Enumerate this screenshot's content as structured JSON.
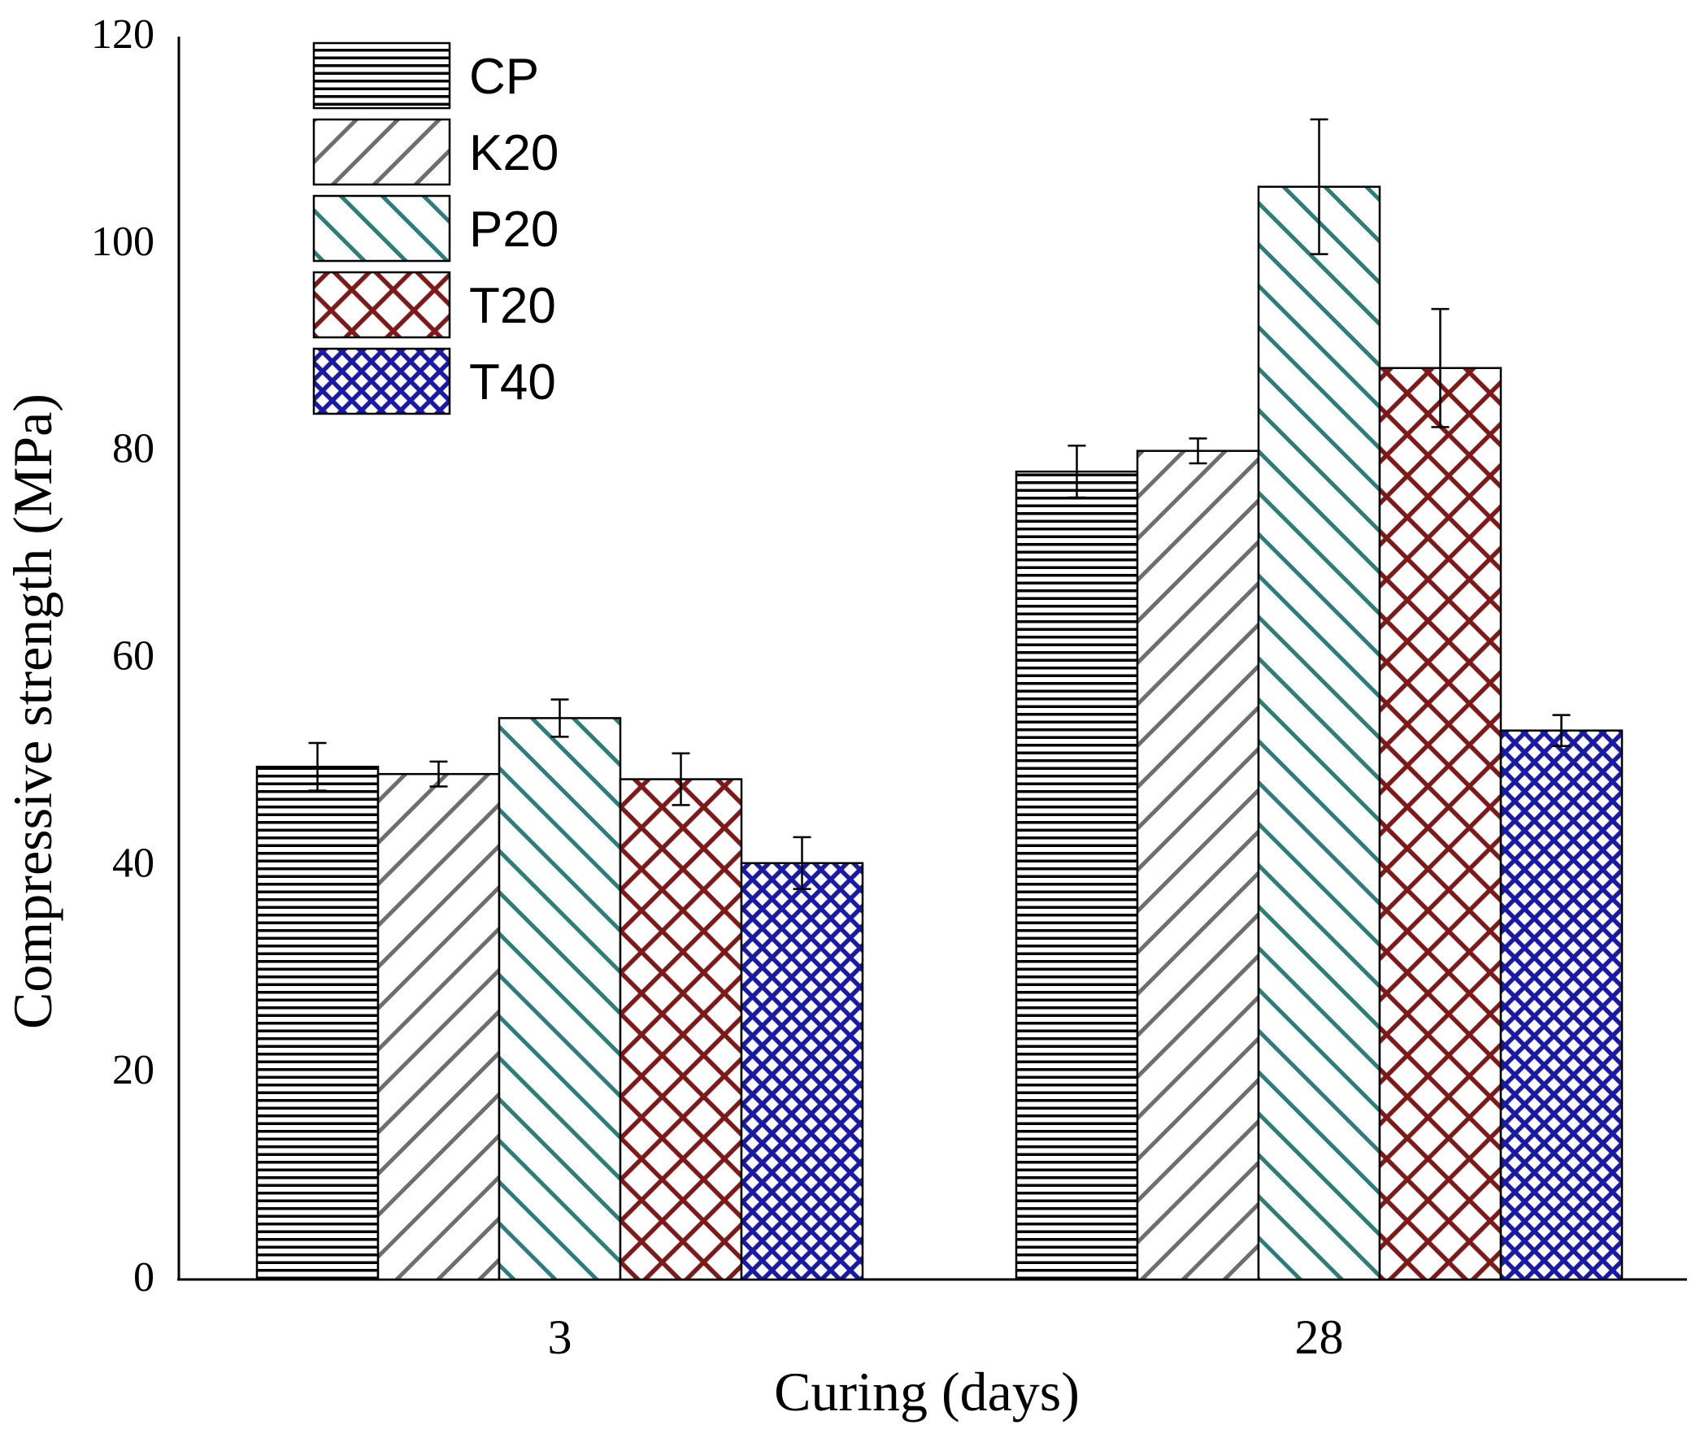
{
  "chart_data": {
    "type": "bar",
    "title": "",
    "xlabel": "Curing (days)",
    "ylabel": "Compressive strength (MPa)",
    "categories": [
      "3",
      "28"
    ],
    "ylim": [
      0,
      120
    ],
    "yticks": [
      0,
      20,
      40,
      60,
      80,
      100,
      120
    ],
    "grid": false,
    "legend_position": "top-left",
    "series": [
      {
        "name": "CP",
        "values": [
          49.5,
          78
        ],
        "errors": [
          2.3,
          2.5
        ],
        "color": "#000000",
        "pattern": "horizontal"
      },
      {
        "name": "K20",
        "values": [
          48.8,
          80
        ],
        "errors": [
          1.2,
          1.2
        ],
        "color": "#6e6e6e",
        "pattern": "diag-up"
      },
      {
        "name": "P20",
        "values": [
          54.2,
          105.5
        ],
        "errors": [
          1.8,
          6.5
        ],
        "color": "#2e7d78",
        "pattern": "diag-down"
      },
      {
        "name": "T20",
        "values": [
          48.3,
          88
        ],
        "errors": [
          2.5,
          5.7
        ],
        "color": "#7a1a1a",
        "pattern": "crosshatch"
      },
      {
        "name": "T40",
        "values": [
          40.2,
          53
        ],
        "errors": [
          2.5,
          1.5
        ],
        "color": "#1a1aa0",
        "pattern": "fine-crosshatch"
      }
    ]
  }
}
